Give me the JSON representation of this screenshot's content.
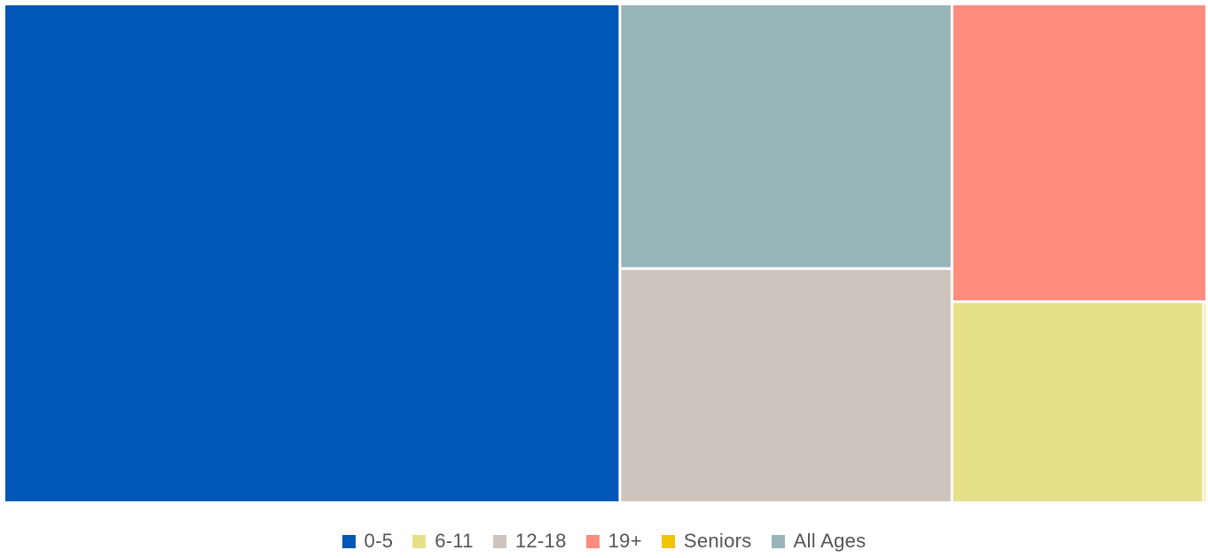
{
  "chart_data": {
    "type": "treemap",
    "title": "",
    "legend_position": "bottom-center",
    "series": [
      {
        "name": "0-5",
        "value": 48.6,
        "color": "#0057b8"
      },
      {
        "name": "All Ages",
        "value": 13.9,
        "color": "#97b5b9"
      },
      {
        "name": "12-18",
        "value": 12.3,
        "color": "#cdc4bd"
      },
      {
        "name": "19+",
        "value": 12.0,
        "color": "#ff8b7e"
      },
      {
        "name": "6-11",
        "value": 8.0,
        "color": "#e6e089"
      },
      {
        "name": "Seniors",
        "value": 0.1,
        "color": "#f0c400"
      }
    ],
    "legend": [
      {
        "label": "0-5",
        "color": "#0057b8"
      },
      {
        "label": "6-11",
        "color": "#e6e089"
      },
      {
        "label": "12-18",
        "color": "#cdc4bd"
      },
      {
        "label": "19+",
        "color": "#ff8b7e"
      },
      {
        "label": "Seniors",
        "color": "#f0c400"
      },
      {
        "label": "All Ages",
        "color": "#97b5b9"
      }
    ]
  }
}
